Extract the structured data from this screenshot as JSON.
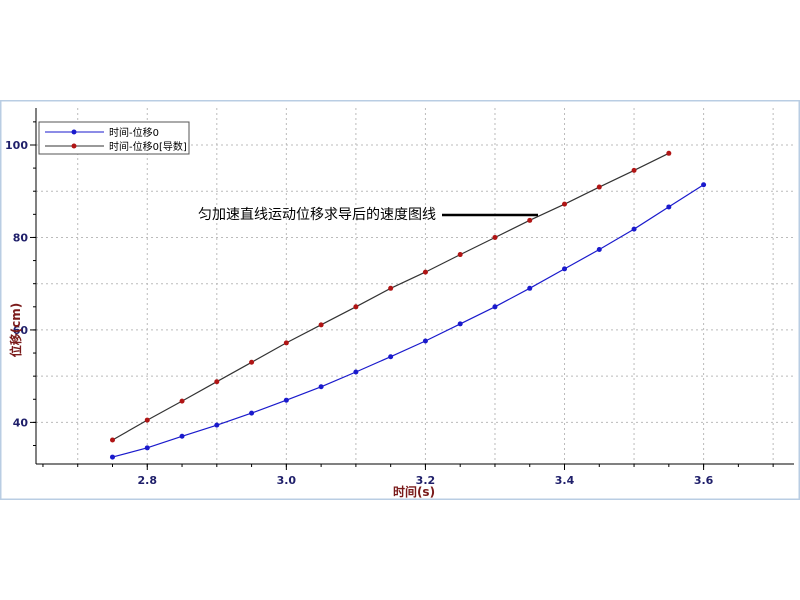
{
  "chart_data": {
    "type": "line",
    "xlabel": "时间(s)",
    "ylabel": "位移(cm)",
    "xlim": [
      2.64,
      3.73
    ],
    "ylim": [
      31,
      108
    ],
    "x_ticks": [
      "2.8",
      "3.0",
      "3.2",
      "3.4",
      "3.6"
    ],
    "x_tick_values": [
      2.8,
      3.0,
      3.2,
      3.4,
      3.6
    ],
    "y_ticks": [
      "40",
      "60",
      "80",
      "100"
    ],
    "y_tick_values": [
      40,
      60,
      80,
      100
    ],
    "grid": true,
    "legend_position": "top-left",
    "series": [
      {
        "name": "时间-位移0",
        "color": "#1a1acc",
        "x": [
          2.75,
          2.8,
          2.85,
          2.9,
          2.95,
          3.0,
          3.05,
          3.1,
          3.15,
          3.2,
          3.25,
          3.3,
          3.35,
          3.4,
          3.45,
          3.5,
          3.55,
          3.6
        ],
        "y": [
          32.5,
          34.5,
          37.0,
          39.4,
          42.0,
          44.8,
          47.7,
          50.9,
          54.2,
          57.6,
          61.3,
          65.0,
          69.0,
          73.2,
          77.4,
          81.8,
          86.6,
          91.4
        ]
      },
      {
        "name": "时间-位移0[导数]",
        "color": "#b01515",
        "x": [
          2.75,
          2.8,
          2.85,
          2.9,
          2.95,
          3.0,
          3.05,
          3.1,
          3.15,
          3.2,
          3.25,
          3.3,
          3.35,
          3.4,
          3.45,
          3.5,
          3.55
        ],
        "y": [
          36.2,
          40.5,
          44.6,
          48.8,
          53.0,
          57.2,
          61.1,
          65.0,
          69.0,
          72.5,
          76.3,
          80.0,
          83.7,
          87.2,
          90.9,
          94.5,
          98.2
        ]
      }
    ],
    "annotation": "匀加速直线运动位移求导后的速度图线"
  }
}
